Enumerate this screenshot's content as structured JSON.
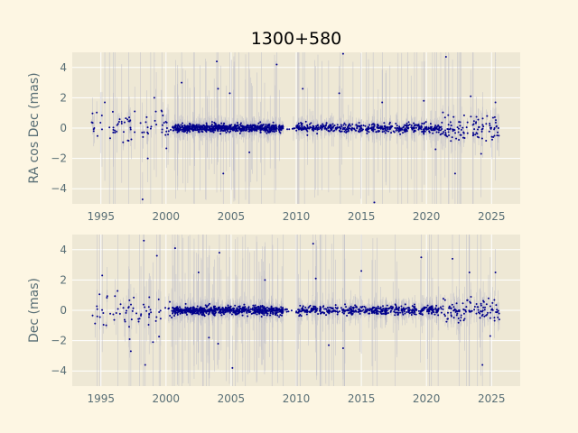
{
  "chart_data": {
    "type": "scatter",
    "title": "1300+580",
    "style": {
      "figure_bg": "#fdf6e3",
      "axes_bg": "#eee8d5",
      "grid_color": "#ffffff",
      "marker_color": "#00008b",
      "errorbar_color": "#b8b8c8",
      "text_color": "#586e75"
    },
    "panels": [
      {
        "name": "ra",
        "ylabel": "RA cos Dec (mas)",
        "xlim": [
          1992.8,
          2027.2
        ],
        "ylim": [
          -5,
          5
        ],
        "xticks": [
          1995,
          2000,
          2005,
          2010,
          2015,
          2020,
          2025
        ],
        "yticks": [
          -4,
          -2,
          0,
          2,
          4
        ],
        "grid": true,
        "outliers": [
          {
            "x": 1995.3,
            "y": 1.7
          },
          {
            "x": 1996.6,
            "y": 0.3
          },
          {
            "x": 1997.6,
            "y": 1.1
          },
          {
            "x": 1998.2,
            "y": -4.7
          },
          {
            "x": 1998.6,
            "y": -2.0
          },
          {
            "x": 1999.1,
            "y": 2.0
          },
          {
            "x": 2001.2,
            "y": 3.0
          },
          {
            "x": 2003.9,
            "y": 4.4
          },
          {
            "x": 2004.0,
            "y": 2.6
          },
          {
            "x": 2004.4,
            "y": -3.0
          },
          {
            "x": 2004.9,
            "y": 2.3
          },
          {
            "x": 2006.4,
            "y": -1.6
          },
          {
            "x": 2008.5,
            "y": 4.2
          },
          {
            "x": 2010.5,
            "y": 2.6
          },
          {
            "x": 2013.3,
            "y": 2.3
          },
          {
            "x": 2013.6,
            "y": 4.9
          },
          {
            "x": 2016.0,
            "y": -4.9
          },
          {
            "x": 2016.6,
            "y": 1.7
          },
          {
            "x": 2019.8,
            "y": 1.8
          },
          {
            "x": 2020.7,
            "y": -1.4
          },
          {
            "x": 2021.5,
            "y": 4.7
          },
          {
            "x": 2022.2,
            "y": -3.0
          },
          {
            "x": 2023.4,
            "y": 2.1
          },
          {
            "x": 2024.2,
            "y": -1.7
          },
          {
            "x": 2025.3,
            "y": 1.7
          }
        ]
      },
      {
        "name": "dec",
        "ylabel": "Dec (mas)",
        "xlim": [
          1992.8,
          2027.2
        ],
        "ylim": [
          -5,
          5
        ],
        "xticks": [
          1995,
          2000,
          2005,
          2010,
          2015,
          2020,
          2025
        ],
        "yticks": [
          -4,
          -2,
          0,
          2,
          4
        ],
        "grid": true,
        "outliers": [
          {
            "x": 1995.1,
            "y": 2.3
          },
          {
            "x": 1997.3,
            "y": -2.7
          },
          {
            "x": 1998.3,
            "y": 4.6
          },
          {
            "x": 1998.4,
            "y": -3.6
          },
          {
            "x": 1999.3,
            "y": 3.6
          },
          {
            "x": 1999.0,
            "y": -2.1
          },
          {
            "x": 2000.7,
            "y": 4.1
          },
          {
            "x": 2002.5,
            "y": 2.5
          },
          {
            "x": 2003.3,
            "y": -1.8
          },
          {
            "x": 2004.1,
            "y": 3.8
          },
          {
            "x": 2004.0,
            "y": -2.2
          },
          {
            "x": 2005.1,
            "y": -3.8
          },
          {
            "x": 2007.6,
            "y": 2.0
          },
          {
            "x": 2011.3,
            "y": 4.4
          },
          {
            "x": 2011.5,
            "y": 2.1
          },
          {
            "x": 2012.5,
            "y": -2.3
          },
          {
            "x": 2013.6,
            "y": -2.5
          },
          {
            "x": 2015.0,
            "y": 2.6
          },
          {
            "x": 2019.6,
            "y": 3.5
          },
          {
            "x": 2022.0,
            "y": 3.4
          },
          {
            "x": 2023.3,
            "y": 2.5
          },
          {
            "x": 2024.3,
            "y": -3.6
          },
          {
            "x": 2025.3,
            "y": 2.5
          },
          {
            "x": 2024.9,
            "y": -1.7
          }
        ]
      }
    ],
    "observation_density": [
      {
        "from": 1994.2,
        "to": 2000.5,
        "count": 70,
        "scatter": 0.55,
        "err_max": 4.0
      },
      {
        "from": 2000.5,
        "to": 2009.0,
        "count": 700,
        "scatter": 0.13,
        "err_max": 1.2
      },
      {
        "from": 2009.0,
        "to": 2010.0,
        "count": 6,
        "scatter": 0.1,
        "err_max": 0.5
      },
      {
        "from": 2010.0,
        "to": 2021.0,
        "count": 450,
        "scatter": 0.15,
        "err_max": 1.5
      },
      {
        "from": 2021.0,
        "to": 2025.6,
        "count": 110,
        "scatter": 0.4,
        "err_max": 2.5
      }
    ]
  }
}
